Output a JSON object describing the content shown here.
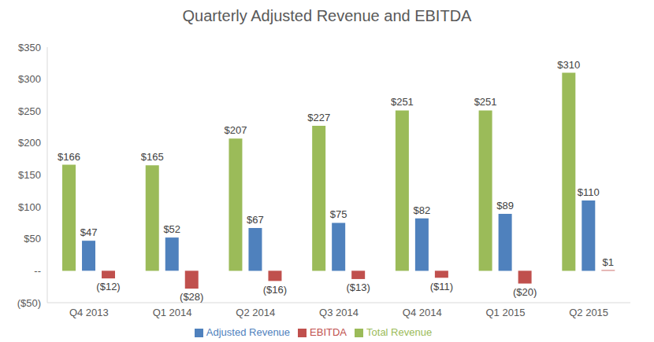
{
  "chart_data": {
    "type": "bar",
    "title": "Quarterly Adjusted Revenue and EBITDA",
    "categories": [
      "Q4 2013",
      "Q1 2014",
      "Q2 2014",
      "Q3 2014",
      "Q4 2014",
      "Q1 2015",
      "Q2 2015"
    ],
    "series": [
      {
        "name": "Total Revenue",
        "color": "#9BBB59",
        "values": [
          166,
          165,
          207,
          227,
          251,
          251,
          310
        ],
        "value_labels": [
          "$166",
          "$165",
          "$207",
          "$227",
          "$251",
          "$251",
          "$310"
        ]
      },
      {
        "name": "Adjusted Revenue",
        "color": "#4F81BD",
        "values": [
          47,
          52,
          67,
          75,
          82,
          89,
          110
        ],
        "value_labels": [
          "$47",
          "$52",
          "$67",
          "$75",
          "$82",
          "$89",
          "$110"
        ]
      },
      {
        "name": "EBITDA",
        "color": "#C0504D",
        "values": [
          -12,
          -28,
          -16,
          -13,
          -11,
          -20,
          1
        ],
        "value_labels": [
          "($12)",
          "($28)",
          "($16)",
          "($13)",
          "($11)",
          "($20)",
          "$1"
        ]
      }
    ],
    "ylim": [
      -50,
      350
    ],
    "yticks": [
      {
        "value": -50,
        "label": "($50)"
      },
      {
        "value": 0,
        "label": "--"
      },
      {
        "value": 50,
        "label": "$50"
      },
      {
        "value": 100,
        "label": "$100"
      },
      {
        "value": 150,
        "label": "$150"
      },
      {
        "value": 200,
        "label": "$200"
      },
      {
        "value": 250,
        "label": "$250"
      },
      {
        "value": 300,
        "label": "$300"
      },
      {
        "value": 350,
        "label": "$350"
      }
    ],
    "grid": false,
    "legend": "bottom",
    "data_labels": true
  }
}
